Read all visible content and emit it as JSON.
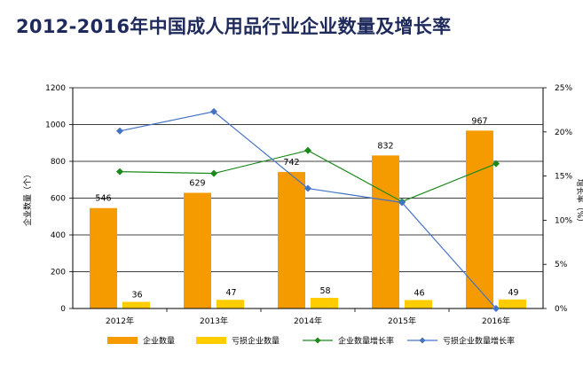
{
  "title": "2012-2016年中国成人用品行业企业数量及增长率",
  "chart_data": {
    "type": "bar",
    "title": "2012-2016年中国成人用品行业企业数量及增长率",
    "categories": [
      "2012年",
      "2013年",
      "2014年",
      "2015年",
      "2016年"
    ],
    "ylabel": "企业数量（个）",
    "y2label": "增长率（%）",
    "ylim": [
      0,
      1200
    ],
    "y2lim": [
      0,
      25
    ],
    "yticks": [
      "0",
      "200",
      "400",
      "600",
      "800",
      "1000",
      "1200"
    ],
    "y2ticks": [
      "0%",
      "5%",
      "10%",
      "15%",
      "20%",
      "25%"
    ],
    "grid": true,
    "legend_position": "bottom",
    "series": [
      {
        "name": "企业数量",
        "kind": "bar",
        "axis": "left",
        "color": "#f59b00",
        "values": [
          546,
          629,
          742,
          832,
          967
        ],
        "labels": [
          "546",
          "629",
          "742",
          "832",
          "967"
        ]
      },
      {
        "name": "亏损企业数量",
        "kind": "bar",
        "axis": "left",
        "color": "#ffcc00",
        "values": [
          36,
          47,
          58,
          46,
          49
        ],
        "labels": [
          "36",
          "47",
          "58",
          "46",
          "49"
        ]
      },
      {
        "name": "企业数量增长率",
        "kind": "line",
        "axis": "right",
        "color": "#1a8a1a",
        "values": [
          15.5,
          15.3,
          17.9,
          12.1,
          16.4
        ]
      },
      {
        "name": "亏损企业数量增长率",
        "kind": "line",
        "axis": "right",
        "color": "#4472c4",
        "values": [
          20.1,
          22.3,
          13.6,
          12.0,
          0.0
        ]
      }
    ]
  }
}
